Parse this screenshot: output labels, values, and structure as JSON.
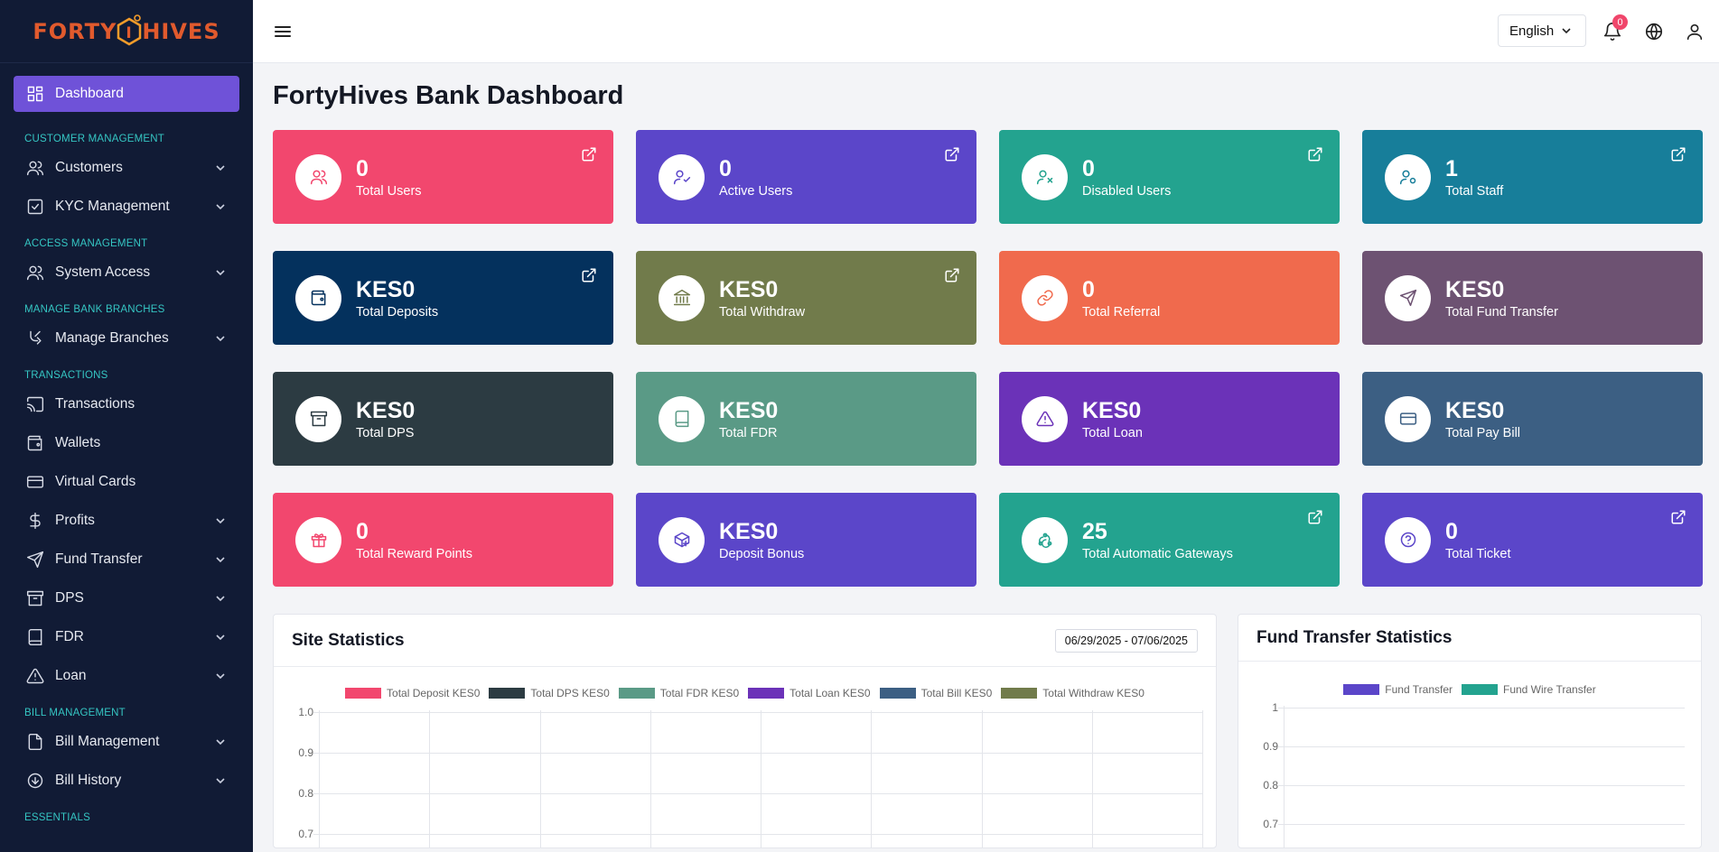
{
  "brand": {
    "name_left": "FORTY",
    "name_right": "HIVES",
    "hex_letter": "I"
  },
  "sidebar": {
    "items": [
      {
        "type": "item",
        "label": "Dashboard",
        "icon": "grid-icon",
        "active": true,
        "chevron": false
      },
      {
        "type": "section",
        "label": "CUSTOMER MANAGEMENT"
      },
      {
        "type": "item",
        "label": "Customers",
        "icon": "users-icon",
        "chevron": true
      },
      {
        "type": "item",
        "label": "KYC Management",
        "icon": "check-square-icon",
        "chevron": true
      },
      {
        "type": "section",
        "label": "ACCESS MANAGEMENT"
      },
      {
        "type": "item",
        "label": "System Access",
        "icon": "users-icon",
        "chevron": true
      },
      {
        "type": "section",
        "label": "MANAGE BANK BRANCHES"
      },
      {
        "type": "item",
        "label": "Manage Branches",
        "icon": "branch-icon",
        "chevron": true
      },
      {
        "type": "section",
        "label": "TRANSACTIONS"
      },
      {
        "type": "item",
        "label": "Transactions",
        "icon": "cast-icon",
        "chevron": false
      },
      {
        "type": "item",
        "label": "Wallets",
        "icon": "wallet-icon",
        "chevron": false
      },
      {
        "type": "item",
        "label": "Virtual Cards",
        "icon": "card-icon",
        "chevron": false
      },
      {
        "type": "item",
        "label": "Profits",
        "icon": "dollar-icon",
        "chevron": true
      },
      {
        "type": "item",
        "label": "Fund Transfer",
        "icon": "send-icon",
        "chevron": true
      },
      {
        "type": "item",
        "label": "DPS",
        "icon": "archive-icon",
        "chevron": true
      },
      {
        "type": "item",
        "label": "FDR",
        "icon": "book-icon",
        "chevron": true
      },
      {
        "type": "item",
        "label": "Loan",
        "icon": "alert-triangle-icon",
        "chevron": true
      },
      {
        "type": "section",
        "label": "BILL MANAGEMENT"
      },
      {
        "type": "item",
        "label": "Bill Management",
        "icon": "file-icon",
        "chevron": true
      },
      {
        "type": "item",
        "label": "Bill History",
        "icon": "arrow-circle-down-icon",
        "chevron": true
      },
      {
        "type": "section",
        "label": "ESSENTIALS"
      }
    ]
  },
  "topbar": {
    "language": "English",
    "notifications_count": "0"
  },
  "page": {
    "title": "FortyHives Bank Dashboard"
  },
  "cards": [
    {
      "value": "0",
      "label": "Total Users",
      "color": "#f2476e",
      "icon": "users-icon",
      "ext": true
    },
    {
      "value": "0",
      "label": "Active Users",
      "color": "#5b46c9",
      "icon": "user-check-icon",
      "ext": true
    },
    {
      "value": "0",
      "label": "Disabled Users",
      "color": "#23a38f",
      "icon": "user-x-icon",
      "ext": true
    },
    {
      "value": "1",
      "label": "Total Staff",
      "color": "#177e9a",
      "icon": "user-cog-icon",
      "ext": true
    },
    {
      "value": "KES0",
      "label": "Total Deposits",
      "color": "#04315d",
      "icon": "wallet-icon",
      "ext": true
    },
    {
      "value": "KES0",
      "label": "Total Withdraw",
      "color": "#717b4b",
      "icon": "bank-icon",
      "ext": true
    },
    {
      "value": "0",
      "label": "Total Referral",
      "color": "#f06a4d",
      "icon": "link-icon",
      "ext": false
    },
    {
      "value": "KES0",
      "label": "Total Fund Transfer",
      "color": "#6d5272",
      "icon": "send-icon",
      "ext": false
    },
    {
      "value": "KES0",
      "label": "Total DPS",
      "color": "#2c3b42",
      "icon": "archive-icon",
      "ext": false
    },
    {
      "value": "KES0",
      "label": "Total FDR",
      "color": "#5a9a86",
      "icon": "book-icon",
      "ext": false
    },
    {
      "value": "KES0",
      "label": "Total Loan",
      "color": "#6b32b8",
      "icon": "alert-triangle-icon",
      "ext": false
    },
    {
      "value": "KES0",
      "label": "Total Pay Bill",
      "color": "#3c5f83",
      "icon": "card-icon",
      "ext": false
    },
    {
      "value": "0",
      "label": "Total Reward Points",
      "color": "#f2476e",
      "icon": "gift-icon",
      "ext": false
    },
    {
      "value": "KES0",
      "label": "Deposit Bonus",
      "color": "#5b46c9",
      "icon": "box-plus-icon",
      "ext": false
    },
    {
      "value": "25",
      "label": "Total Automatic Gateways",
      "color": "#23a38f",
      "icon": "webhook-icon",
      "ext": true
    },
    {
      "value": "0",
      "label": "Total Ticket",
      "color": "#5b46c9",
      "icon": "help-circle-icon",
      "ext": true
    }
  ],
  "site_statistics": {
    "title": "Site Statistics",
    "date_range": "06/29/2025 - 07/06/2025"
  },
  "fund_transfer_statistics": {
    "title": "Fund Transfer Statistics"
  },
  "chart_data": [
    {
      "type": "line",
      "title": "Site Statistics",
      "series": [
        {
          "name": "Total Deposit KES0",
          "color": "#f2476e",
          "values": []
        },
        {
          "name": "Total DPS KES0",
          "color": "#2c3b42",
          "values": []
        },
        {
          "name": "Total FDR KES0",
          "color": "#5a9a86",
          "values": []
        },
        {
          "name": "Total Loan KES0",
          "color": "#6b32b8",
          "values": []
        },
        {
          "name": "Total Bill KES0",
          "color": "#3c5f83",
          "values": []
        },
        {
          "name": "Total Withdraw KES0",
          "color": "#717b4b",
          "values": []
        }
      ],
      "y_ticks": [
        "1.0",
        "0.9",
        "0.8",
        "0.7"
      ],
      "grid": true,
      "legend": "top"
    },
    {
      "type": "bar",
      "title": "Fund Transfer Statistics",
      "series": [
        {
          "name": "Fund Transfer",
          "color": "#5b46c9",
          "values": []
        },
        {
          "name": "Fund Wire Transfer",
          "color": "#23a38f",
          "values": []
        }
      ],
      "y_ticks": [
        "1",
        "0.9",
        "0.8",
        "0.7"
      ],
      "grid": true,
      "legend": "top"
    }
  ]
}
